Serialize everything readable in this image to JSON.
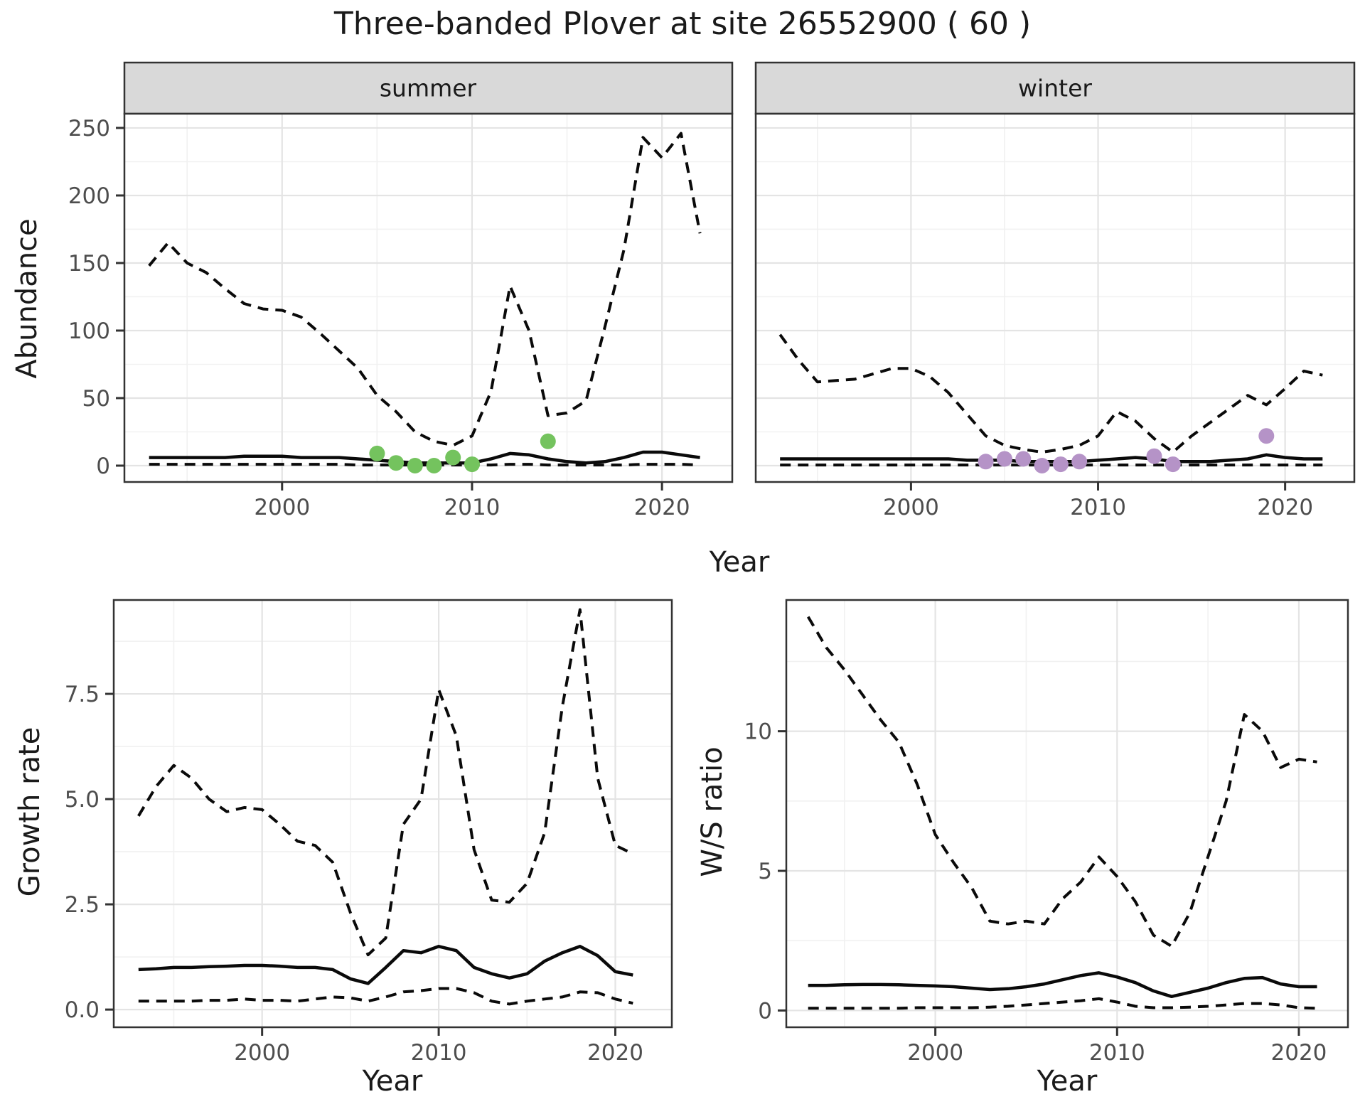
{
  "title": "Three-banded Plover at site 26552900 ( 60 )",
  "facets": {
    "summer": "summer",
    "winter": "winter"
  },
  "axes": {
    "abundance": "Abundance",
    "year": "Year",
    "growth": "Growth rate",
    "ws": "W/S ratio"
  },
  "colors": {
    "summer_points": "#74c35e",
    "winter_points": "#b593c7",
    "line": "#0a0a0a",
    "strip_fill": "#d9d9d9",
    "panel_border": "#333333",
    "tick_label": "#4d4d4d",
    "grid_major": "#e4e4e4",
    "grid_minor": "#f1f1f1",
    "panel_bg": "#ffffff"
  },
  "chart_data": [
    {
      "id": "abundance-summer",
      "type": "line",
      "strip": "summer",
      "ylabel": "Abundance",
      "xlabel": "Year",
      "x_years": [
        1993,
        1994,
        1995,
        1996,
        1997,
        1998,
        1999,
        2000,
        2001,
        2002,
        2003,
        2004,
        2005,
        2006,
        2007,
        2008,
        2009,
        2010,
        2011,
        2012,
        2013,
        2014,
        2015,
        2016,
        2017,
        2018,
        2019,
        2020,
        2021,
        2022
      ],
      "series": [
        {
          "name": "upper-ci",
          "style": "dashed",
          "values": [
            148,
            165,
            150,
            143,
            131,
            120,
            116,
            115,
            110,
            98,
            85,
            72,
            52,
            40,
            25,
            18,
            15,
            22,
            55,
            133,
            100,
            37,
            39,
            48,
            103,
            160,
            243,
            228,
            246,
            172
          ]
        },
        {
          "name": "estimate",
          "style": "solid",
          "values": [
            6,
            6,
            6,
            6,
            6,
            7,
            7,
            7,
            6,
            6,
            6,
            5,
            4,
            3,
            2,
            2,
            2,
            2,
            5,
            9,
            8,
            5,
            3,
            2,
            3,
            6,
            10,
            10,
            8,
            6
          ]
        },
        {
          "name": "lower-ci",
          "style": "dashed",
          "values": [
            1,
            1,
            1,
            1,
            1,
            1,
            1,
            1,
            1,
            1,
            1,
            0.5,
            0.5,
            0.5,
            0.5,
            0.5,
            0.5,
            0.5,
            0.5,
            1,
            1,
            0.5,
            0.5,
            0.5,
            0.5,
            0.5,
            1,
            1,
            1,
            0.5
          ]
        }
      ],
      "observed_points": {
        "name": "observed-counts",
        "color_key": "summer_points",
        "data": [
          [
            2005,
            9
          ],
          [
            2006,
            2
          ],
          [
            2007,
            0
          ],
          [
            2008,
            0
          ],
          [
            2009,
            6
          ],
          [
            2010,
            1
          ],
          [
            2014,
            18
          ]
        ]
      },
      "xlim": [
        1991.7,
        2023.7
      ],
      "ylim": [
        -12.1,
        260.5
      ],
      "x_ticks": [
        2000,
        2010,
        2020
      ],
      "x_tick_labels": [
        "2000",
        "2010",
        "2020"
      ],
      "x_minor": [
        1995,
        2005,
        2015
      ],
      "y_ticks": [
        0,
        50,
        100,
        150,
        200,
        250
      ],
      "y_tick_labels": [
        "0",
        "50",
        "100",
        "150",
        "200",
        "250"
      ],
      "y_minor": [
        25,
        75,
        125,
        175,
        225
      ],
      "show_y_tick_labels": true
    },
    {
      "id": "abundance-winter",
      "type": "line",
      "strip": "winter",
      "ylabel": "Abundance",
      "xlabel": "Year",
      "x_years": [
        1993,
        1994,
        1995,
        1996,
        1997,
        1998,
        1999,
        2000,
        2001,
        2002,
        2003,
        2004,
        2005,
        2006,
        2007,
        2008,
        2009,
        2010,
        2011,
        2012,
        2013,
        2014,
        2015,
        2016,
        2017,
        2018,
        2019,
        2020,
        2021,
        2022
      ],
      "series": [
        {
          "name": "upper-ci",
          "style": "dashed",
          "values": [
            97,
            78,
            62,
            63,
            64,
            68,
            72,
            72,
            66,
            54,
            38,
            22,
            15,
            12,
            10,
            12,
            15,
            22,
            40,
            33,
            20,
            10,
            22,
            32,
            42,
            52,
            45,
            57,
            70,
            67
          ]
        },
        {
          "name": "estimate",
          "style": "solid",
          "values": [
            5,
            5,
            5,
            5,
            5,
            5,
            5,
            5,
            5,
            5,
            4,
            4,
            4,
            3,
            3,
            3,
            3,
            4,
            5,
            6,
            5,
            3,
            3,
            3,
            4,
            5,
            8,
            6,
            5,
            5
          ]
        },
        {
          "name": "lower-ci",
          "style": "dashed",
          "values": [
            0.5,
            0.5,
            0.5,
            0.5,
            0.5,
            0.5,
            0.5,
            0.5,
            0.5,
            0.5,
            0.5,
            0.5,
            0.5,
            0.5,
            0.5,
            0.5,
            0.5,
            0.5,
            0.5,
            0.5,
            0.5,
            0.5,
            0.5,
            0.5,
            0.5,
            0.5,
            0.5,
            0.5,
            0.5,
            0.5
          ]
        }
      ],
      "observed_points": {
        "name": "observed-counts",
        "color_key": "winter_points",
        "data": [
          [
            2004,
            3
          ],
          [
            2005,
            5
          ],
          [
            2006,
            5
          ],
          [
            2007,
            0
          ],
          [
            2008,
            1
          ],
          [
            2009,
            3
          ],
          [
            2013,
            7
          ],
          [
            2014,
            1
          ],
          [
            2019,
            22
          ]
        ]
      },
      "xlim": [
        1991.7,
        2023.7
      ],
      "ylim": [
        -12.1,
        260.5
      ],
      "x_ticks": [
        2000,
        2010,
        2020
      ],
      "x_tick_labels": [
        "2000",
        "2010",
        "2020"
      ],
      "x_minor": [
        1995,
        2005,
        2015
      ],
      "y_ticks": [
        0,
        50,
        100,
        150,
        200,
        250
      ],
      "y_tick_labels": [
        "0",
        "50",
        "100",
        "150",
        "200",
        "250"
      ],
      "y_minor": [
        25,
        75,
        125,
        175,
        225
      ],
      "show_y_tick_labels": false
    },
    {
      "id": "growth-rate",
      "type": "line",
      "strip": null,
      "ylabel": "Growth rate",
      "xlabel": "Year",
      "x_years": [
        1993,
        1994,
        1995,
        1996,
        1997,
        1998,
        1999,
        2000,
        2001,
        2002,
        2003,
        2004,
        2005,
        2006,
        2007,
        2008,
        2009,
        2010,
        2011,
        2012,
        2013,
        2014,
        2015,
        2016,
        2017,
        2018,
        2019,
        2020,
        2021
      ],
      "series": [
        {
          "name": "upper-ci",
          "style": "dashed",
          "values": [
            4.6,
            5.3,
            5.8,
            5.5,
            5.0,
            4.7,
            4.8,
            4.75,
            4.4,
            4.0,
            3.9,
            3.5,
            2.3,
            1.3,
            1.7,
            4.4,
            5.0,
            7.6,
            6.5,
            3.8,
            2.6,
            2.55,
            3.0,
            4.2,
            7.2,
            9.5,
            5.5,
            3.9,
            3.7
          ]
        },
        {
          "name": "estimate",
          "style": "solid",
          "values": [
            0.95,
            0.97,
            1.0,
            1.0,
            1.02,
            1.03,
            1.05,
            1.05,
            1.03,
            1.0,
            1.0,
            0.95,
            0.73,
            0.62,
            1.0,
            1.4,
            1.35,
            1.5,
            1.4,
            1.0,
            0.85,
            0.75,
            0.85,
            1.15,
            1.35,
            1.5,
            1.28,
            0.9,
            0.82
          ]
        },
        {
          "name": "lower-ci",
          "style": "dashed",
          "values": [
            0.2,
            0.2,
            0.2,
            0.2,
            0.22,
            0.22,
            0.25,
            0.22,
            0.22,
            0.2,
            0.25,
            0.3,
            0.28,
            0.2,
            0.3,
            0.42,
            0.45,
            0.5,
            0.5,
            0.4,
            0.2,
            0.13,
            0.2,
            0.25,
            0.3,
            0.42,
            0.4,
            0.25,
            0.15
          ]
        }
      ],
      "observed_points": null,
      "xlim": [
        1991.6,
        2023.2
      ],
      "ylim": [
        -0.42,
        9.73
      ],
      "x_ticks": [
        2000,
        2010,
        2020
      ],
      "x_tick_labels": [
        "2000",
        "2010",
        "2020"
      ],
      "x_minor": [
        1995,
        2005,
        2015
      ],
      "y_ticks": [
        0,
        2.5,
        5,
        7.5
      ],
      "y_tick_labels": [
        "0.0",
        "2.5",
        "5.0",
        "7.5"
      ],
      "y_minor": [
        1.25,
        3.75,
        6.25,
        8.75
      ],
      "show_y_tick_labels": true
    },
    {
      "id": "ws-ratio",
      "type": "line",
      "strip": null,
      "ylabel": "W/S ratio",
      "xlabel": "Year",
      "x_years": [
        1993,
        1994,
        1995,
        1996,
        1997,
        1998,
        1999,
        2000,
        2001,
        2002,
        2003,
        2004,
        2005,
        2006,
        2007,
        2008,
        2009,
        2010,
        2011,
        2012,
        2013,
        2014,
        2015,
        2016,
        2017,
        2018,
        2019,
        2020,
        2021
      ],
      "series": [
        {
          "name": "upper-ci",
          "style": "dashed",
          "values": [
            14.1,
            13.0,
            12.2,
            11.3,
            10.4,
            9.6,
            8.1,
            6.3,
            5.3,
            4.4,
            3.2,
            3.1,
            3.2,
            3.1,
            4.0,
            4.6,
            5.5,
            4.8,
            3.9,
            2.7,
            2.3,
            3.5,
            5.5,
            7.5,
            10.6,
            10.0,
            8.7,
            9.0,
            8.9
          ]
        },
        {
          "name": "estimate",
          "style": "solid",
          "values": [
            0.9,
            0.9,
            0.92,
            0.93,
            0.93,
            0.92,
            0.9,
            0.88,
            0.85,
            0.8,
            0.75,
            0.78,
            0.85,
            0.95,
            1.1,
            1.25,
            1.35,
            1.2,
            1.0,
            0.7,
            0.5,
            0.65,
            0.8,
            1.0,
            1.15,
            1.18,
            0.95,
            0.85,
            0.85
          ]
        },
        {
          "name": "lower-ci",
          "style": "dashed",
          "values": [
            0.08,
            0.08,
            0.08,
            0.08,
            0.08,
            0.08,
            0.1,
            0.1,
            0.1,
            0.1,
            0.12,
            0.15,
            0.2,
            0.25,
            0.3,
            0.35,
            0.42,
            0.3,
            0.15,
            0.1,
            0.1,
            0.12,
            0.15,
            0.2,
            0.25,
            0.25,
            0.2,
            0.1,
            0.08
          ]
        }
      ],
      "observed_points": null,
      "xlim": [
        1991.8,
        2022.7
      ],
      "ylim": [
        -0.6,
        14.7
      ],
      "x_ticks": [
        2000,
        2010,
        2020
      ],
      "x_tick_labels": [
        "2000",
        "2010",
        "2020"
      ],
      "x_minor": [
        1995,
        2005,
        2015
      ],
      "y_ticks": [
        0,
        5,
        10
      ],
      "y_tick_labels": [
        "0",
        "5",
        "10"
      ],
      "y_minor": [
        2.5,
        7.5,
        12.5
      ],
      "show_y_tick_labels": true
    }
  ]
}
